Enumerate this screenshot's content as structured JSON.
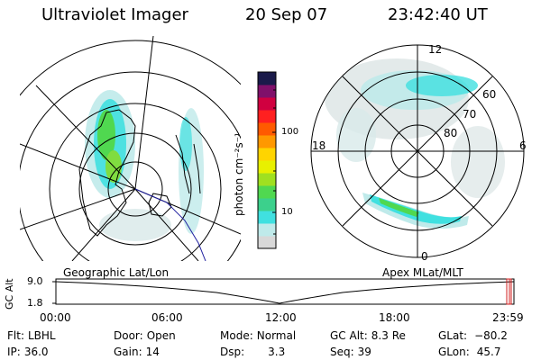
{
  "header": {
    "title": "Ultraviolet Imager",
    "date": "20 Sep 07",
    "time": "23:42:40 UT"
  },
  "left_panel": {
    "label": "Geographic Lat/Lon"
  },
  "right_panel": {
    "label": "Apex MLat/MLT",
    "mlt_labels": {
      "top": "12",
      "bottom": "0",
      "left": "18",
      "right": "6"
    },
    "mlat_labels": [
      "60",
      "70",
      "80"
    ]
  },
  "colorbar": {
    "unit": "photon cm⁻²s⁻¹",
    "ticks": [
      "100",
      "10"
    ],
    "colors": [
      "#d8d8d8",
      "#bfeaea",
      "#40e0e0",
      "#3cd08c",
      "#50d850",
      "#a0e020",
      "#e8f000",
      "#ffd400",
      "#ff9800",
      "#ff5a00",
      "#ff2020",
      "#d00040",
      "#80106a",
      "#1a1a4a"
    ]
  },
  "timeseries": {
    "ylabel": "GC Alt",
    "yticks": [
      "9.0",
      "1.8"
    ],
    "xticks": [
      "00:00",
      "06:00",
      "12:00",
      "18:00",
      "23:59"
    ]
  },
  "info": {
    "flt": {
      "key": "Flt:",
      "value": "LBHL"
    },
    "ip": {
      "key": "IP:",
      "value": "36.0"
    },
    "door": {
      "key": "Door:",
      "value": "Open"
    },
    "gain": {
      "key": "Gain:",
      "value": "14"
    },
    "mode": {
      "key": "Mode:",
      "value": "Normal"
    },
    "dsp": {
      "key": "Dsp:",
      "value": "3.3"
    },
    "gcalt": {
      "key": "GC Alt:",
      "value": "8.3 Re"
    },
    "seq": {
      "key": "Seq:",
      "value": "39"
    },
    "glat": {
      "key": "GLat:",
      "value": "−80.2"
    },
    "glon": {
      "key": "GLon:",
      "value": "45.7"
    }
  }
}
